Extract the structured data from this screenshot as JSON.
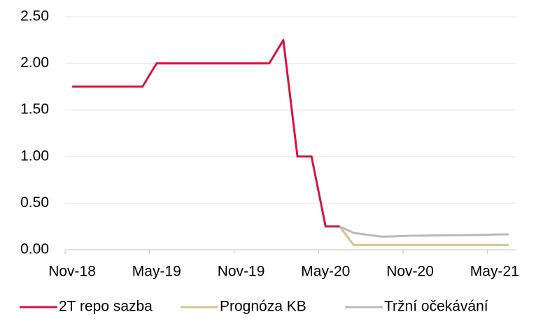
{
  "chart_data": {
    "type": "line",
    "categories": [
      "Nov-18",
      null,
      null,
      null,
      null,
      null,
      "May-19",
      null,
      null,
      null,
      null,
      null,
      "Nov-19",
      null,
      null,
      null,
      null,
      null,
      "May-20",
      null,
      null,
      null,
      null,
      null,
      "Nov-20",
      null,
      null,
      null,
      null,
      null,
      "May-21",
      null
    ],
    "series": [
      {
        "name": "2T repo sazba",
        "color": "#d6143c",
        "values": [
          1.75,
          1.75,
          1.75,
          1.75,
          1.75,
          1.75,
          2.0,
          2.0,
          2.0,
          2.0,
          2.0,
          2.0,
          2.0,
          2.0,
          2.0,
          2.25,
          1.0,
          1.0,
          0.25,
          0.25,
          null,
          null,
          null,
          null,
          null,
          null,
          null,
          null,
          null,
          null,
          null,
          null
        ]
      },
      {
        "name": "Prognóza KB",
        "color": "#d9c08c",
        "values": [
          null,
          null,
          null,
          null,
          null,
          null,
          null,
          null,
          null,
          null,
          null,
          null,
          null,
          null,
          null,
          null,
          null,
          null,
          null,
          0.25,
          0.05,
          0.05,
          0.05,
          0.05,
          0.05,
          0.05,
          0.05,
          0.05,
          0.05,
          0.05,
          0.05,
          0.05
        ]
      },
      {
        "name": "Tržní očekávání",
        "color": "#bab8be",
        "values": [
          null,
          null,
          null,
          null,
          null,
          null,
          null,
          null,
          null,
          null,
          null,
          null,
          null,
          null,
          null,
          null,
          null,
          null,
          null,
          0.25,
          0.18,
          0.16,
          0.14,
          0.145,
          0.15,
          0.152,
          0.154,
          0.156,
          0.158,
          0.16,
          0.163,
          0.165
        ]
      }
    ],
    "ylim": [
      0,
      2.5
    ],
    "yticks": [
      {
        "value": 0,
        "label": "0.00"
      },
      {
        "value": 0.5,
        "label": "0.50"
      },
      {
        "value": 1,
        "label": "1.00"
      },
      {
        "value": 1.5,
        "label": "1.50"
      },
      {
        "value": 2,
        "label": "2.00"
      },
      {
        "value": 2.5,
        "label": "2.50"
      }
    ],
    "grid": true,
    "legend": "bottom"
  }
}
